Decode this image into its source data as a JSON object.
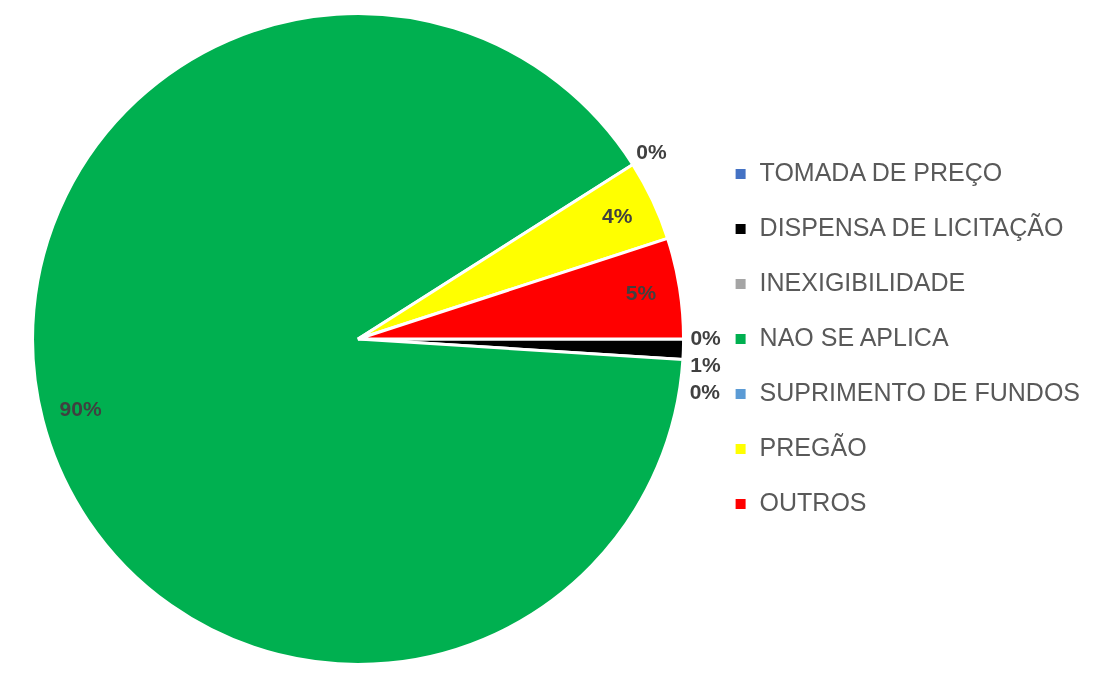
{
  "chart_data": {
    "type": "pie",
    "categories": [
      "TOMADA DE PREÇO",
      "DISPENSA DE LICITAÇÃO",
      "INEXIGIBILIDADE",
      "NAO SE APLICA",
      "SUPRIMENTO DE FUNDOS",
      "PREGÃO",
      "OUTROS"
    ],
    "values": [
      0,
      1,
      0,
      90,
      0,
      4,
      5
    ],
    "colors": [
      "#4472c4",
      "#000000",
      "#a5a5a5",
      "#00b050",
      "#5b9bd5",
      "#ffff00",
      "#ff0000"
    ],
    "value_labels": [
      "0%",
      "1%",
      "0%",
      "90%",
      "0%",
      "4%",
      "5%"
    ],
    "legend": "right"
  }
}
